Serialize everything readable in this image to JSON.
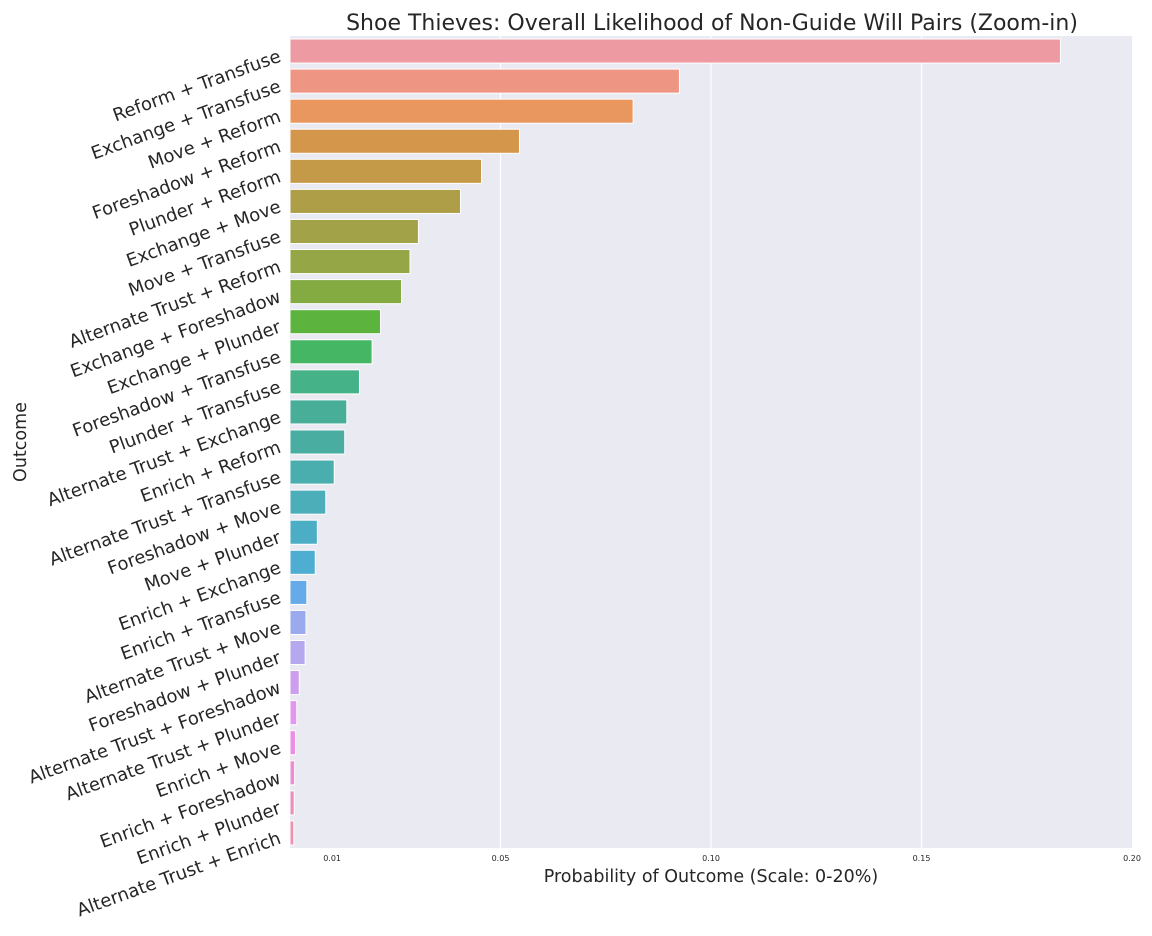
{
  "chart_data": {
    "type": "bar",
    "orientation": "horizontal",
    "title": "Shoe Thieves: Overall Likelihood of Non-Guide Will Pairs (Zoom-in)",
    "xlabel": "Probability of Outcome (Scale: 0-20%)",
    "ylabel": "Outcome",
    "xlim": [
      0,
      0.2
    ],
    "xticks": [
      {
        "value": 0.01,
        "label": "0.01"
      },
      {
        "value": 0.05,
        "label": "0.05"
      },
      {
        "value": 0.1,
        "label": "0.10"
      },
      {
        "value": 0.15,
        "label": "0.15"
      },
      {
        "value": 0.2,
        "label": "0.20"
      }
    ],
    "grid": true,
    "background": "#eaeaf2",
    "categories": [
      "Reform + Transfuse",
      "Exchange + Transfuse",
      "Move + Reform",
      "Foreshadow + Reform",
      "Plunder + Reform",
      "Exchange + Move",
      "Move + Transfuse",
      "Alternate Trust + Reform",
      "Exchange + Foreshadow",
      "Exchange + Plunder",
      "Foreshadow + Transfuse",
      "Plunder + Transfuse",
      "Alternate Trust + Exchange",
      "Enrich + Reform",
      "Alternate Trust + Transfuse",
      "Foreshadow + Move",
      "Move + Plunder",
      "Enrich + Exchange",
      "Enrich + Transfuse",
      "Alternate Trust + Move",
      "Foreshadow + Plunder",
      "Alternate Trust + Foreshadow",
      "Alternate Trust + Plunder",
      "Enrich + Move",
      "Enrich + Foreshadow",
      "Enrich + Plunder",
      "Alternate Trust + Enrich"
    ],
    "values": [
      0.183,
      0.0925,
      0.0815,
      0.0545,
      0.0455,
      0.0405,
      0.0305,
      0.0285,
      0.0265,
      0.0215,
      0.0195,
      0.0165,
      0.0135,
      0.013,
      0.0105,
      0.0085,
      0.0065,
      0.006,
      0.004,
      0.0038,
      0.0036,
      0.0022,
      0.0016,
      0.0013,
      0.0011,
      0.001,
      0.0009
    ],
    "colors": [
      "#ee9aa2",
      "#ee9683",
      "#ea965f",
      "#d4964a",
      "#c49a48",
      "#ae9e48",
      "#a2a248",
      "#94a645",
      "#84aa42",
      "#5cb43e",
      "#45b664",
      "#46b287",
      "#48ae98",
      "#4aada2",
      "#4baeae",
      "#4caeb8",
      "#4caec4",
      "#4daed1",
      "#66aaea",
      "#99aaee",
      "#b5a8ee",
      "#cc9eee",
      "#e098ee",
      "#ec8ee4",
      "#ee8ed0",
      "#ee8ebf",
      "#ee90b0"
    ]
  }
}
